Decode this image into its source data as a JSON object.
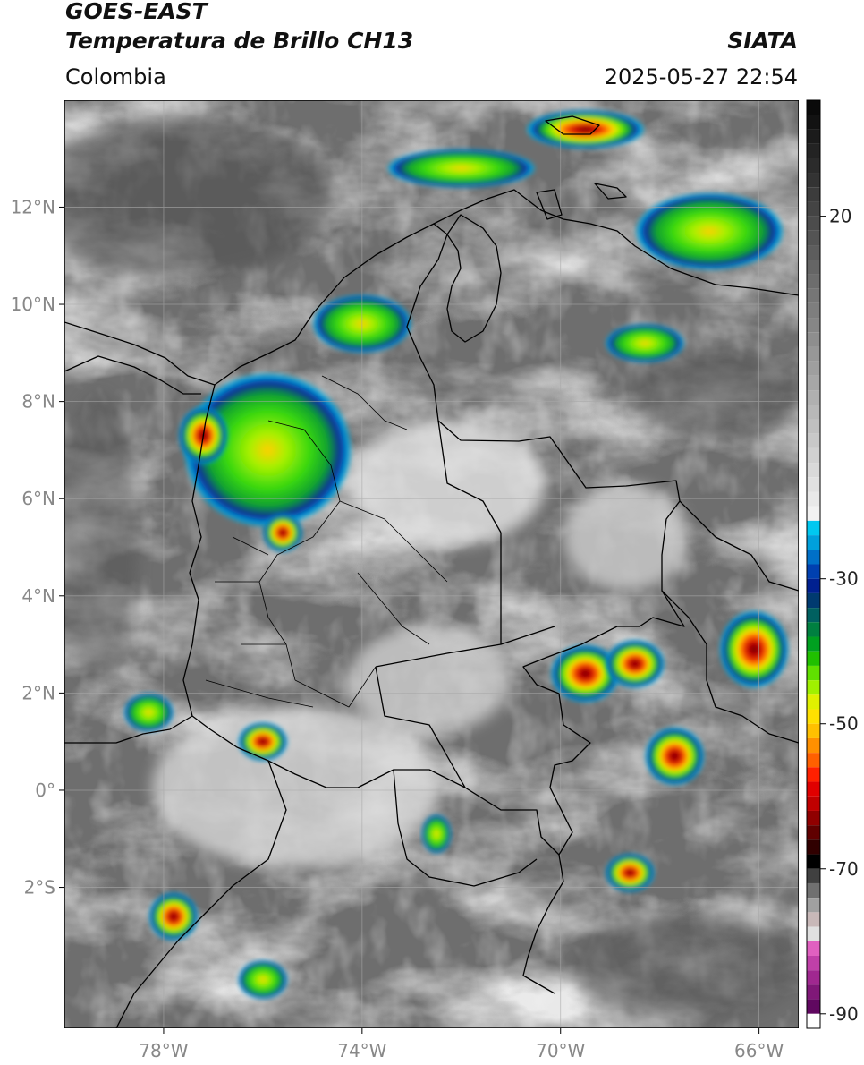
{
  "header": {
    "satellite": "GOES-EAST",
    "product": "Temperatura de Brillo CH13",
    "agency": "SIATA",
    "region": "Colombia",
    "timestamp": "2025-05-27 22:54"
  },
  "map": {
    "lon_range": [
      -80,
      -65.2
    ],
    "lat_range": [
      -4.9,
      14.2
    ],
    "lat_ticks": [
      {
        "value": 12,
        "label": "12°N"
      },
      {
        "value": 10,
        "label": "10°N"
      },
      {
        "value": 8,
        "label": "8°N"
      },
      {
        "value": 6,
        "label": "6°N"
      },
      {
        "value": 4,
        "label": "4°N"
      },
      {
        "value": 2,
        "label": "2°N"
      },
      {
        "value": 0,
        "label": "0°"
      },
      {
        "value": -2,
        "label": "2°S"
      }
    ],
    "lon_ticks": [
      {
        "value": -78,
        "label": "78°W"
      },
      {
        "value": -74,
        "label": "74°W"
      },
      {
        "value": -70,
        "label": "70°W"
      },
      {
        "value": -66,
        "label": "66°W"
      }
    ],
    "grid": true,
    "cold_cloud_cells": [
      {
        "lon": -75.9,
        "lat": 7.0,
        "rlon": 1.7,
        "rlat": 1.6,
        "min_temp": -50
      },
      {
        "lon": -77.2,
        "lat": 7.3,
        "rlon": 0.5,
        "rlat": 0.6,
        "min_temp": -55
      },
      {
        "lon": -75.6,
        "lat": 5.3,
        "rlon": 0.4,
        "rlat": 0.4,
        "min_temp": -60
      },
      {
        "lon": -69.5,
        "lat": 2.4,
        "rlon": 0.7,
        "rlat": 0.6,
        "min_temp": -70
      },
      {
        "lon": -68.5,
        "lat": 2.6,
        "rlon": 0.6,
        "rlat": 0.5,
        "min_temp": -65
      },
      {
        "lon": -67.7,
        "lat": 0.7,
        "rlon": 0.6,
        "rlat": 0.6,
        "min_temp": -72
      },
      {
        "lon": -68.6,
        "lat": -1.7,
        "rlon": 0.5,
        "rlat": 0.4,
        "min_temp": -68
      },
      {
        "lon": -66.1,
        "lat": 2.9,
        "rlon": 0.7,
        "rlat": 0.8,
        "min_temp": -55
      },
      {
        "lon": -77.8,
        "lat": -2.6,
        "rlon": 0.5,
        "rlat": 0.5,
        "min_temp": -58
      },
      {
        "lon": -76.0,
        "lat": 1.0,
        "rlon": 0.5,
        "rlat": 0.4,
        "min_temp": -60
      },
      {
        "lon": -78.3,
        "lat": 1.6,
        "rlon": 0.5,
        "rlat": 0.4,
        "min_temp": -45
      },
      {
        "lon": -69.5,
        "lat": 13.6,
        "rlon": 1.2,
        "rlat": 0.4,
        "min_temp": -55
      },
      {
        "lon": -72.0,
        "lat": 12.8,
        "rlon": 1.5,
        "rlat": 0.4,
        "min_temp": -50
      },
      {
        "lon": -76.0,
        "lat": -3.9,
        "rlon": 0.5,
        "rlat": 0.4,
        "min_temp": -45
      },
      {
        "lon": -74.0,
        "lat": 9.6,
        "rlon": 1.0,
        "rlat": 0.6,
        "min_temp": -40
      },
      {
        "lon": -67.0,
        "lat": 11.5,
        "rlon": 1.5,
        "rlat": 0.8,
        "min_temp": -38
      },
      {
        "lon": -68.3,
        "lat": 9.2,
        "rlon": 0.8,
        "rlat": 0.4,
        "min_temp": -40
      },
      {
        "lon": -72.5,
        "lat": -0.9,
        "rlon": 0.3,
        "rlat": 0.4,
        "min_temp": -45
      }
    ]
  },
  "colorbar": {
    "range": [
      -92,
      36
    ],
    "ticks": [
      {
        "value": 20,
        "label": "20"
      },
      {
        "value": -30,
        "label": "-30"
      },
      {
        "value": -50,
        "label": "-50"
      },
      {
        "value": -70,
        "label": "-70"
      },
      {
        "value": -90,
        "label": "-90"
      }
    ],
    "colors": {
      "cold": "#7a0000",
      "mid": "#ffe000",
      "warm": "#00c0e8",
      "clear": "#6e6e6e"
    }
  }
}
